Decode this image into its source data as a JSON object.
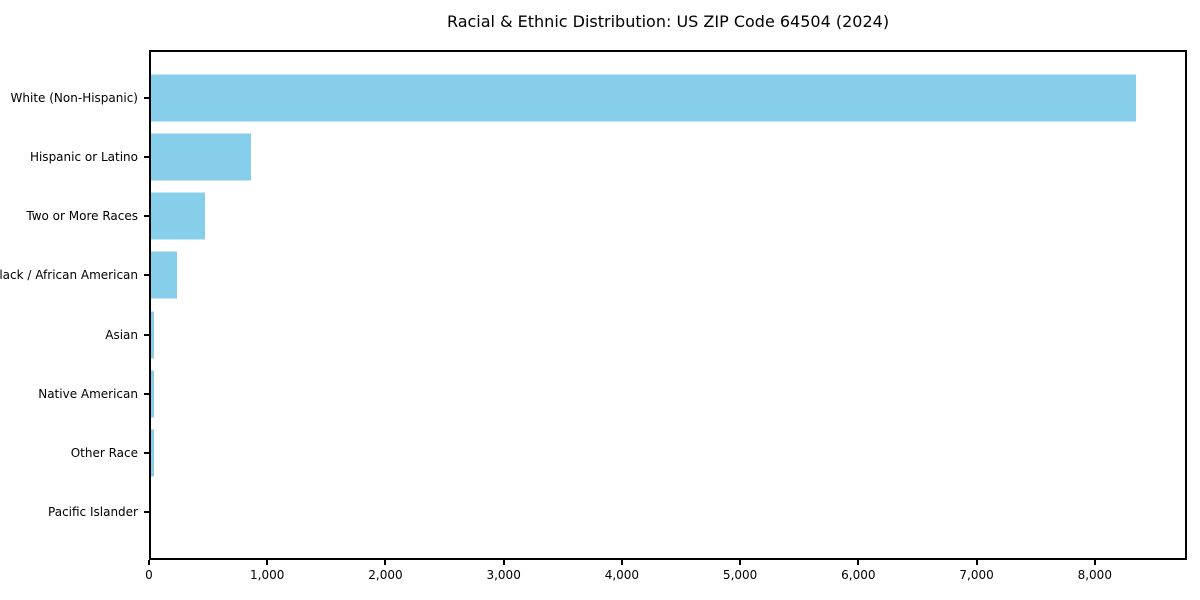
{
  "chart_data": {
    "type": "bar",
    "orientation": "horizontal",
    "title": "Racial & Ethnic Distribution: US ZIP Code 64504 (2024)",
    "xlabel": "",
    "ylabel": "",
    "categories": [
      "White (Non-Hispanic)",
      "Hispanic or Latino",
      "Two or More Races",
      "Black / African American",
      "Asian",
      "Native American",
      "Other Race",
      "Pacific Islander"
    ],
    "values": [
      8350,
      860,
      470,
      235,
      40,
      40,
      40,
      0
    ],
    "xlim": [
      0,
      8780
    ],
    "xticks": [
      0,
      1000,
      2000,
      3000,
      4000,
      5000,
      6000,
      7000,
      8000
    ],
    "xtick_labels": [
      "0",
      "1,000",
      "2,000",
      "3,000",
      "4,000",
      "5,000",
      "6,000",
      "7,000",
      "8,000"
    ],
    "bar_color": "#87CEEB",
    "frame_color": "#000000",
    "text_color": "#000000",
    "background_color": "#FFFFFF",
    "grid": false,
    "legend": false
  }
}
